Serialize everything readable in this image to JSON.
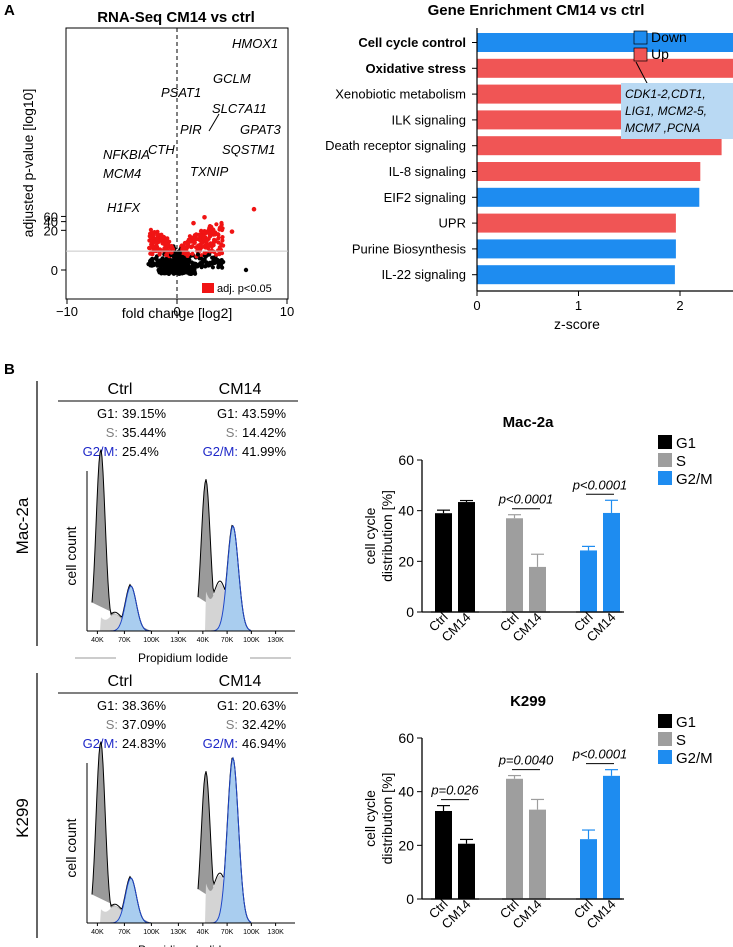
{
  "panel_labels": {
    "a": "A",
    "b": "B"
  },
  "colors": {
    "red": "#f05555",
    "blue": "#1e8cf0",
    "black": "#000000",
    "grey": "#9e9e9e",
    "light_blue_box": "#b9d9f3",
    "lightgrey": "#bdbdbd"
  },
  "chart_data": [
    {
      "id": "volcano",
      "type": "scatter",
      "title": "RNA-Seq CM14 vs ctrl",
      "xlabel": "fold change [log2]",
      "ylabel": "adjusted p-value [log10]",
      "xlim": [
        -10,
        10
      ],
      "xticks": [
        -10,
        0,
        10
      ],
      "xtick_labels": [
        "−10",
        "0",
        "10"
      ],
      "yticks": [
        0,
        20,
        40,
        60
      ],
      "ytick_labels": [
        "0",
        "20",
        "40",
        "60"
      ],
      "legend": "adj. p<0.05",
      "legend_position": "bottom-right",
      "threshold_line": 1.3,
      "gene_labels": [
        {
          "gene": "HMOX1",
          "x": 7.0,
          "y": 66
        },
        {
          "gene": "GCLM",
          "x": 2.5,
          "y": 35
        },
        {
          "gene": "PSAT1",
          "x": 1.5,
          "y": 22
        },
        {
          "gene": "SLC7A11",
          "x": 3.0,
          "y": 17
        },
        {
          "gene": "PIR",
          "x": 2.2,
          "y": 11.5
        },
        {
          "gene": "GPAT3",
          "x": 5.0,
          "y": 11
        },
        {
          "gene": "CTH",
          "x": 2.1,
          "y": 8
        },
        {
          "gene": "SQSTM1",
          "x": 3.0,
          "y": 7.5
        },
        {
          "gene": "NFKBIA",
          "x": -1.2,
          "y": 6.8
        },
        {
          "gene": "TXNIP",
          "x": 2.7,
          "y": 5
        },
        {
          "gene": "MCM4",
          "x": -1.3,
          "y": 3.9
        },
        {
          "gene": "H1FX",
          "x": -0.9,
          "y": 1.7
        }
      ]
    },
    {
      "id": "enrichment",
      "type": "bar",
      "orientation": "horizontal",
      "title": "Gene Enrichment CM14 vs ctrl",
      "xlabel": "z-score",
      "xlim": [
        0,
        4
      ],
      "xticks": [
        0,
        1,
        2,
        3,
        4
      ],
      "categories": [
        "Cell cycle control",
        "Oxidative stress",
        "Xenobiotic metabolism",
        "ILK signaling",
        "Death receptor signaling",
        "IL-8 signaling",
        "EIF2 signaling",
        "UPR",
        "Purine Biosynthesis",
        "IL-22 signaling"
      ],
      "bold_categories": [
        "Cell cycle control",
        "Oxidative stress"
      ],
      "values": [
        3.12,
        2.85,
        2.6,
        2.42,
        2.41,
        2.2,
        2.19,
        1.96,
        1.96,
        1.95
      ],
      "direction": [
        "Down",
        "Up",
        "Up",
        "Up",
        "Up",
        "Up",
        "Down",
        "Up",
        "Down",
        "Down"
      ],
      "legend": [
        "Down",
        "Up"
      ],
      "legend_position": "top-right",
      "annotation": [
        "CDK1-2,CDT1,",
        "LIG1, MCM2-5,",
        "MCM7 ,PCNA"
      ]
    },
    {
      "id": "mac2a_bars",
      "type": "bar",
      "title": "Mac-2a",
      "ylabel": "cell cycle distribution [%]",
      "ylim": [
        0,
        60
      ],
      "yticks": [
        0,
        20,
        40,
        60
      ],
      "categories": [
        "Ctrl",
        "CM14"
      ],
      "series": [
        {
          "name": "G1",
          "values": [
            39.0,
            43.4
          ],
          "errors": [
            1.2,
            0.6
          ]
        },
        {
          "name": "S",
          "values": [
            37.0,
            17.8
          ],
          "errors": [
            1.4,
            5.0
          ]
        },
        {
          "name": "G2/M",
          "values": [
            24.3,
            39.1
          ],
          "errors": [
            1.6,
            5.0
          ]
        }
      ],
      "significance": [
        {
          "series": "S",
          "label": "p<0.0001"
        },
        {
          "series": "G2/M",
          "label": "p<0.0001"
        }
      ]
    },
    {
      "id": "k299_bars",
      "type": "bar",
      "title": "K299",
      "ylabel": "cell cycle distribution [%]",
      "ylim": [
        0,
        60
      ],
      "yticks": [
        0,
        20,
        40,
        60
      ],
      "categories": [
        "Ctrl",
        "CM14"
      ],
      "series": [
        {
          "name": "G1",
          "values": [
            32.8,
            20.6
          ],
          "errors": [
            2.0,
            1.6
          ]
        },
        {
          "name": "S",
          "values": [
            44.8,
            33.3
          ],
          "errors": [
            1.2,
            3.8
          ]
        },
        {
          "name": "G2/M",
          "values": [
            22.3,
            45.9
          ],
          "errors": [
            3.4,
            2.3
          ]
        }
      ],
      "significance": [
        {
          "series": "G1",
          "label": "p=0.026"
        },
        {
          "series": "S",
          "label": "p=0.0040"
        },
        {
          "series": "G2/M",
          "label": "p<0.0001"
        }
      ]
    }
  ],
  "flow": [
    {
      "cell_line": "Mac-2a",
      "xlabel": "Propidium Iodide",
      "ylabel": "cell count",
      "xticks": [
        "40K",
        "70K",
        "100K",
        "130K"
      ],
      "conditions": [
        {
          "name": "Ctrl",
          "g1": "39.15%",
          "s": "35.44%",
          "g2m": "25.4%"
        },
        {
          "name": "CM14",
          "g1": "43.59%",
          "s": "14.42%",
          "g2m": "41.99%"
        }
      ]
    },
    {
      "cell_line": "K299",
      "xlabel": "Propidium Iodide",
      "ylabel": "cell count",
      "xticks": [
        "40K",
        "70K",
        "100K",
        "130K"
      ],
      "conditions": [
        {
          "name": "Ctrl",
          "g1": "38.36%",
          "s": "37.09%",
          "g2m": "24.83%"
        },
        {
          "name": "CM14",
          "g1": "20.63%",
          "s": "32.42%",
          "g2m": "46.94%"
        }
      ]
    }
  ],
  "phase_labels": {
    "g1": "G1:",
    "s": "S:",
    "g2m": "G2/M:"
  }
}
